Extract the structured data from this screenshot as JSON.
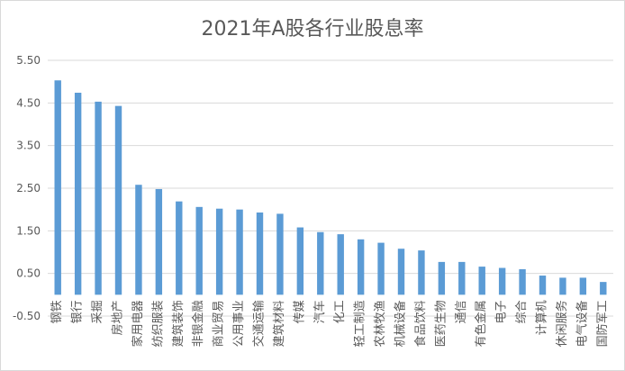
{
  "chart_data": {
    "type": "bar",
    "title": "2021年A股各行业股息率",
    "xlabel": "",
    "ylabel": "",
    "ylim": [
      -0.5,
      5.5
    ],
    "yticks": [
      -0.5,
      0.5,
      1.5,
      2.5,
      3.5,
      4.5,
      5.5
    ],
    "ytick_labels": [
      "-0.50",
      "0.50",
      "1.50",
      "2.50",
      "3.50",
      "4.50",
      "5.50"
    ],
    "grid": true,
    "legend": "none",
    "bar_color": "#5b9bd5",
    "categories": [
      "钢铁",
      "银行",
      "采掘",
      "房地产",
      "家用电器",
      "纺织服装",
      "建筑装饰",
      "非银金融",
      "商业贸易",
      "公用事业",
      "交通运输",
      "建筑材料",
      "传媒",
      "汽车",
      "化工",
      "轻工制造",
      "农林牧渔",
      "机械设备",
      "食品饮料",
      "医药生物",
      "通信",
      "有色金属",
      "电子",
      "综合",
      "计算机",
      "休闲服务",
      "电气设备",
      "国防军工"
    ],
    "values": [
      5.03,
      4.74,
      4.53,
      4.43,
      2.58,
      2.48,
      2.19,
      2.06,
      2.02,
      2.0,
      1.93,
      1.9,
      1.58,
      1.47,
      1.42,
      1.3,
      1.22,
      1.08,
      1.04,
      0.77,
      0.77,
      0.66,
      0.63,
      0.6,
      0.45,
      0.4,
      0.4,
      0.3
    ]
  }
}
